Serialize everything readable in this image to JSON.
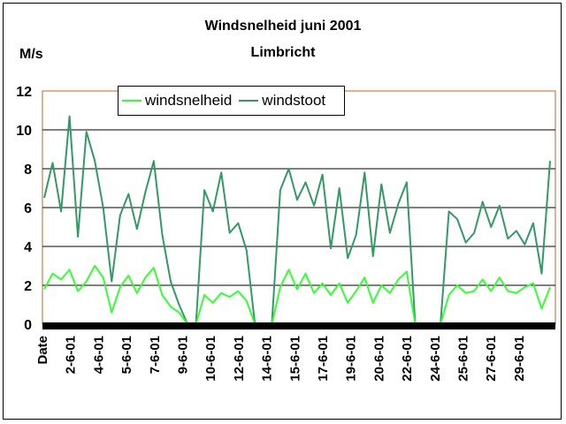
{
  "chart_data": {
    "type": "line",
    "title": "Windsnelheid juni 2001",
    "subtitle": "Limbricht",
    "ylabel": "M/s",
    "ylim": [
      0,
      12
    ],
    "yticks": [
      "0",
      "2",
      "4",
      "6",
      "8",
      "10",
      "12"
    ],
    "grid": true,
    "legend_position": "top-left",
    "x_first_label": "Date",
    "x_tick_labels": [
      "2-6-01",
      "4-6-01",
      "5-6-01",
      "7-6-01",
      "9-6-01",
      "10-6-01",
      "12-6-01",
      "14-6-01",
      "15-6-01",
      "17-6-01",
      "19-6-01",
      "20-6-01",
      "22-6-01",
      "24-6-01",
      "25-6-01",
      "27-6-01",
      "29-6-01"
    ],
    "series": [
      {
        "name": "windsnelheid",
        "color": "#33ff33",
        "values": [
          1.8,
          2.6,
          2.3,
          2.8,
          1.7,
          2.2,
          3.0,
          2.4,
          0.6,
          1.9,
          2.5,
          1.6,
          2.4,
          2.9,
          1.5,
          0.9,
          0.6,
          0,
          0,
          1.5,
          1.1,
          1.6,
          1.4,
          1.7,
          1.2,
          0,
          0,
          0,
          1.9,
          2.8,
          1.8,
          2.6,
          1.6,
          2.1,
          1.5,
          2.1,
          1.1,
          1.7,
          2.4,
          1.1,
          2.0,
          1.6,
          2.3,
          2.7,
          0,
          0,
          0,
          0,
          1.5,
          2.0,
          1.6,
          1.7,
          2.3,
          1.7,
          2.4,
          1.7,
          1.6,
          1.9,
          2.1,
          0.8,
          1.9
        ]
      },
      {
        "name": "windstoot",
        "color": "#339966",
        "values": [
          6.5,
          8.3,
          5.8,
          10.7,
          4.5,
          9.9,
          8.4,
          6.0,
          2.2,
          5.6,
          6.7,
          4.9,
          6.8,
          8.4,
          4.6,
          2.2,
          1.0,
          0,
          0,
          6.9,
          5.8,
          7.8,
          4.7,
          5.2,
          3.8,
          0,
          0,
          0,
          6.9,
          8.0,
          6.4,
          7.3,
          6.1,
          7.7,
          3.9,
          7.0,
          3.4,
          4.6,
          7.8,
          3.5,
          7.2,
          4.7,
          6.2,
          7.3,
          0,
          0,
          0,
          0,
          5.8,
          5.4,
          4.2,
          4.7,
          6.3,
          5.0,
          6.1,
          4.4,
          4.8,
          4.1,
          5.2,
          2.6,
          8.4
        ]
      }
    ]
  }
}
